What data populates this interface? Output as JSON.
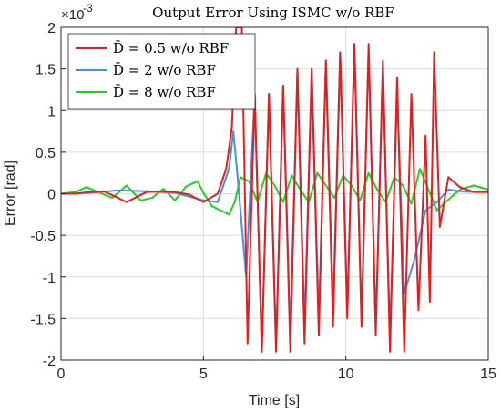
{
  "chart_data": {
    "type": "line",
    "title": "Output Error Using ISMC w/o RBF",
    "xlabel": "Time [s]",
    "ylabel": "Error [rad]",
    "xlim": [
      0,
      15
    ],
    "ylim": [
      -0.002,
      0.002
    ],
    "y_exponent_label": "×10",
    "y_exponent_power": "-3",
    "x_ticks": [
      0,
      5,
      10,
      15
    ],
    "x_tick_labels": [
      "0",
      "5",
      "10",
      "15"
    ],
    "y_ticks": [
      -0.002,
      -0.0015,
      -0.001,
      -0.0005,
      0,
      0.0005,
      0.001,
      0.0015,
      0.002
    ],
    "y_tick_labels": [
      "-2",
      "-1.5",
      "-1",
      "-0.5",
      "0",
      "0.5",
      "1",
      "1.5",
      "2"
    ],
    "grid": true,
    "legend_position": "top-left",
    "legend": [
      {
        "name": "D̄ = 0.5   w/o RBF",
        "color": "#e02020"
      },
      {
        "name": "D̄ = 2     w/o RBF",
        "color": "#4a90d9"
      },
      {
        "name": "D̄ = 8     w/o RBF",
        "color": "#22d022"
      }
    ],
    "series": [
      {
        "name": "D̄ = 0.5 w/o RBF",
        "color": "#e02020",
        "x": [
          0,
          0.5,
          1.0,
          1.5,
          2.0,
          2.3,
          2.6,
          3.0,
          3.5,
          4.0,
          4.5,
          5.0,
          5.5,
          5.8,
          6.0,
          6.15,
          6.35,
          6.55,
          6.8,
          7.05,
          7.3,
          7.55,
          7.8,
          8.05,
          8.3,
          8.55,
          8.8,
          9.05,
          9.3,
          9.55,
          9.8,
          10.05,
          10.3,
          10.55,
          10.8,
          11.05,
          11.3,
          11.55,
          11.8,
          12.05,
          12.3,
          12.55,
          12.8,
          12.95,
          13.1,
          13.3,
          13.6,
          14.0,
          14.5,
          15.0
        ],
        "values": [
          0,
          0,
          2e-05,
          3e-05,
          -5e-05,
          -0.0001,
          -5e-05,
          2e-05,
          3e-05,
          2e-05,
          -1e-05,
          -0.0001,
          0.0,
          0.0003,
          0.0008,
          0.002,
          0.002,
          -0.0018,
          0.0012,
          -0.0019,
          0.0012,
          -0.0019,
          0.0013,
          -0.0019,
          0.0015,
          -0.0018,
          0.0015,
          -0.0017,
          0.0016,
          -0.0016,
          0.0017,
          -0.0015,
          0.0018,
          -0.0016,
          0.0018,
          -0.0017,
          0.0016,
          -0.0019,
          0.0014,
          -0.0019,
          0.0012,
          -0.0014,
          0.0007,
          -0.0013,
          0.0017,
          -0.0004,
          0.0002,
          8e-05,
          2e-05,
          2e-05
        ]
      },
      {
        "name": "D̄ = 2 w/o RBF",
        "color": "#4a90d9",
        "x": [
          0,
          1.0,
          2.0,
          3.0,
          4.0,
          5.0,
          5.5,
          5.9,
          6.05,
          6.2,
          6.5,
          6.8,
          7.05,
          7.3,
          7.55,
          7.8,
          8.05,
          8.3,
          8.55,
          8.8,
          9.05,
          9.3,
          9.55,
          9.8,
          10.05,
          10.3,
          10.55,
          10.8,
          11.05,
          11.3,
          11.55,
          11.8,
          12.05,
          12.4,
          12.8,
          13.2,
          13.6,
          14.0,
          14.5,
          15.0
        ],
        "values": [
          0,
          1e-05,
          4e-05,
          3e-05,
          1e-05,
          -8e-05,
          -0.0001,
          0.0003,
          0.00075,
          0.0002,
          -0.001,
          0.0012,
          -0.0019,
          0.0012,
          -0.0018,
          0.0013,
          -0.0017,
          0.0015,
          -0.0016,
          0.0015,
          -0.0015,
          0.0016,
          -0.0014,
          0.0017,
          -0.0014,
          0.0018,
          -0.0015,
          0.0017,
          -0.0016,
          0.0015,
          -0.0017,
          0.0012,
          -0.0012,
          -0.0008,
          -0.0002,
          -0.0001,
          5e-05,
          3e-05,
          2e-05,
          2e-05
        ]
      },
      {
        "name": "D̄ = 8 w/o RBF",
        "color": "#22d022",
        "x": [
          0,
          0.5,
          0.9,
          1.3,
          1.8,
          2.3,
          2.8,
          3.2,
          3.6,
          4.0,
          4.4,
          4.8,
          5.0,
          5.3,
          5.6,
          5.9,
          6.1,
          6.3,
          6.6,
          6.9,
          7.2,
          7.5,
          7.8,
          8.1,
          8.4,
          8.7,
          9.0,
          9.3,
          9.6,
          9.9,
          10.2,
          10.5,
          10.8,
          11.1,
          11.4,
          11.7,
          12.0,
          12.3,
          12.6,
          12.9,
          13.2,
          13.5,
          14.0,
          14.5,
          15.0
        ],
        "values": [
          0,
          2e-05,
          8e-05,
          2e-05,
          -5e-05,
          0.0001,
          -8e-05,
          -5e-05,
          6e-05,
          -8e-05,
          9e-05,
          0.00015,
          1e-05,
          -0.00015,
          -0.0002,
          -0.00025,
          -0.0001,
          0.0002,
          0.00015,
          -0.0001,
          0.00025,
          0.0001,
          -0.0001,
          0.00022,
          5e-05,
          -0.0001,
          0.00025,
          0.0001,
          -5e-05,
          0.00022,
          0.0001,
          -8e-05,
          0.00025,
          5e-05,
          -0.0001,
          0.0002,
          0.0001,
          -0.00012,
          0.0003,
          5e-05,
          -0.0002,
          -0.0001,
          5e-05,
          0.0001,
          5e-05
        ]
      }
    ]
  }
}
